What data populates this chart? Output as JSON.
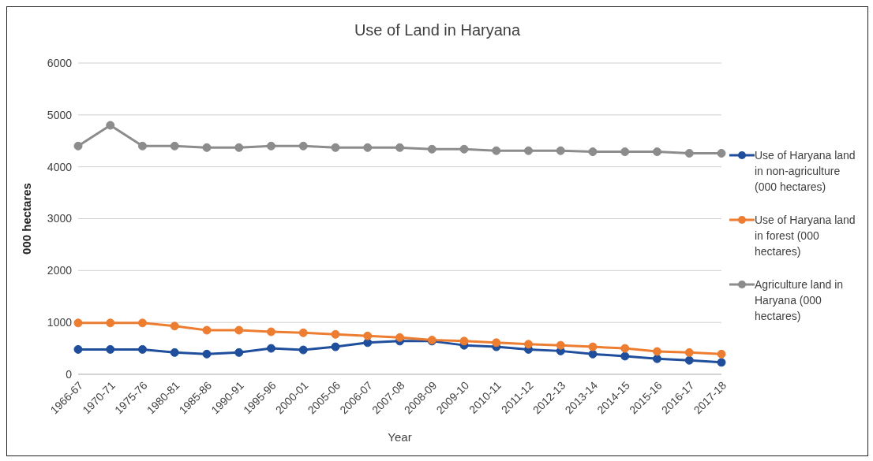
{
  "chart_data": {
    "type": "line",
    "title": "Use of Land in Haryana",
    "xlabel": "Year",
    "ylabel": "000 hectares",
    "categories": [
      "1966-67",
      "1970-71",
      "1975-76",
      "1980-81",
      "1985-86",
      "1990-91",
      "1995-96",
      "2000-01",
      "2005-06",
      "2006-07",
      "2007-08",
      "2008-09",
      "2009-10",
      "2010-11",
      "2011-12",
      "2012-13",
      "2013-14",
      "2014-15",
      "2015-16",
      "2016-17",
      "2017-18"
    ],
    "series": [
      {
        "name": "Use of Haryana land in non-agriculture (000 hectares)",
        "color": "#1f4e9c",
        "values": [
          480,
          480,
          480,
          420,
          390,
          420,
          500,
          470,
          530,
          610,
          640,
          640,
          560,
          530,
          480,
          450,
          390,
          350,
          300,
          270,
          230
        ]
      },
      {
        "name": "Use of Haryana land in forest (000 hectares)",
        "color": "#ed7d31",
        "values": [
          990,
          990,
          990,
          930,
          850,
          850,
          820,
          800,
          770,
          740,
          710,
          660,
          640,
          610,
          580,
          560,
          530,
          500,
          440,
          420,
          390
        ]
      },
      {
        "name": "Agriculture land in Haryana (000 hectares)",
        "color": "#8c8c8c",
        "values": [
          4400,
          4800,
          4400,
          4400,
          4370,
          4370,
          4400,
          4400,
          4370,
          4370,
          4370,
          4340,
          4340,
          4310,
          4310,
          4310,
          4290,
          4290,
          4290,
          4260,
          4260
        ]
      }
    ],
    "ylim": [
      0,
      6000
    ],
    "yticks": [
      0,
      1000,
      2000,
      3000,
      4000,
      5000,
      6000
    ],
    "grid": "y",
    "legend": "right",
    "marker": "circle",
    "line_style": "solid"
  }
}
